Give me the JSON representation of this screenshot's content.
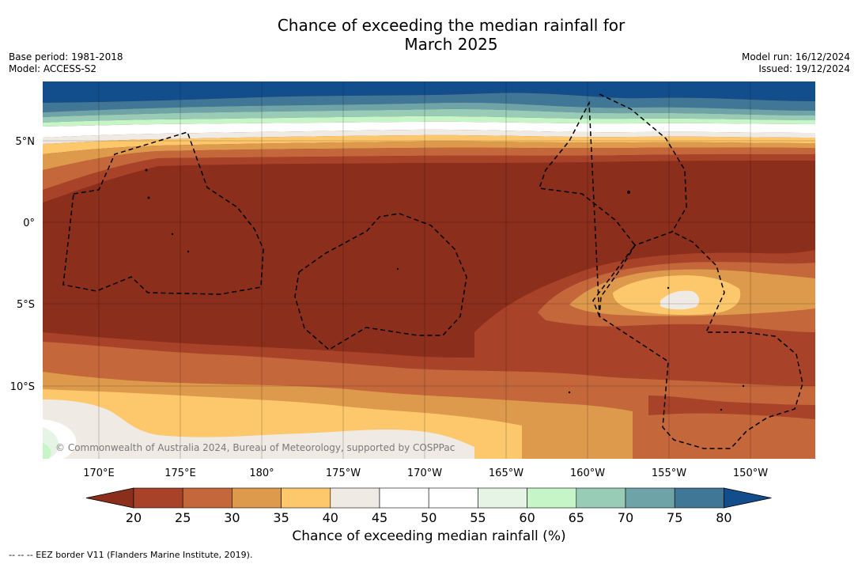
{
  "header": {
    "title_line1": "Chance of exceeding the median rainfall for",
    "title_line2": "March 2025",
    "base_period": "Base period: 1981-2018",
    "model": "Model: ACCESS-S2",
    "model_run": "Model run: 16/12/2024",
    "issued": "Issued: 19/12/2024"
  },
  "map": {
    "lat_labels": [
      "5°N",
      "0°",
      "5°S",
      "10°S"
    ],
    "lon_labels": [
      "170°E",
      "175°E",
      "180°",
      "175°W",
      "170°W",
      "165°W",
      "160°W",
      "155°W",
      "150°W"
    ],
    "copyright": "© Commonwealth of Australia 2024, Bureau of Meteorology, supported by COSPPac"
  },
  "legend": {
    "title": "Chance of exceeding median rainfall (%)",
    "ticks": [
      "20",
      "25",
      "30",
      "35",
      "40",
      "45",
      "50",
      "55",
      "60",
      "65",
      "70",
      "75",
      "80"
    ],
    "colors": [
      "#8b2e1b",
      "#a8432a",
      "#c4673a",
      "#de9a4c",
      "#fdc86b",
      "#efeae4",
      "#ffffff",
      "#ffffff",
      "#e5f4e4",
      "#c6f6c8",
      "#98ccb6",
      "#6ea4a7",
      "#417796",
      "#134e8c"
    ]
  },
  "footnote": "--  --  -- EEZ border V11 (Flanders Marine Institute, 2019)."
}
